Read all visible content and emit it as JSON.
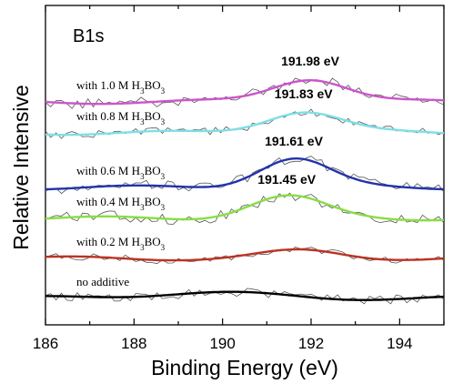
{
  "chart_data": {
    "type": "line",
    "panel_label": "B1s",
    "xlabel": "Binding Energy (eV)",
    "ylabel": "Relative Intensive",
    "xlim": [
      186,
      195
    ],
    "x_ticks": [
      "186",
      "188",
      "190",
      "192",
      "194"
    ],
    "y_ticks_shown": false,
    "grid": false,
    "series": [
      {
        "label": "with 1.0 M H3BO3",
        "label_parts": {
          "pre": "with 1.0 M H",
          "sub1": "3",
          "mid": "BO",
          "sub2": "3"
        },
        "color": "#cc55cc",
        "baseline": 112,
        "peak": {
          "center": 191.98,
          "height": 26,
          "width": 0.85,
          "label": "191.98 eV"
        },
        "noise_seed": 7,
        "noise_amp": 6
      },
      {
        "label": "with 0.8 M H3BO3",
        "label_parts": {
          "pre": "with 0.8 M H",
          "sub1": "3",
          "mid": "BO",
          "sub2": "3"
        },
        "color": "#7fdfe6",
        "baseline": 146,
        "peak": {
          "center": 191.83,
          "height": 24,
          "width": 0.85,
          "label": "191.83 eV"
        },
        "noise_seed": 13,
        "noise_amp": 4
      },
      {
        "label": "with 0.6 M H3BO3",
        "label_parts": {
          "pre": "with 0.6 M H",
          "sub1": "3",
          "mid": "BO",
          "sub2": "3"
        },
        "color": "#2233aa",
        "baseline": 206,
        "peak": {
          "center": 191.61,
          "height": 32,
          "width": 0.8,
          "label": "191.61 eV"
        },
        "noise_seed": 21,
        "noise_amp": 6
      },
      {
        "label": "with 0.4 M H3BO3",
        "label_parts": {
          "pre": "with 0.4 M H",
          "sub1": "3",
          "mid": "BO",
          "sub2": "3"
        },
        "color": "#88dd44",
        "baseline": 240,
        "peak": {
          "center": 191.45,
          "height": 24,
          "width": 0.85,
          "label": "191.45 eV"
        },
        "noise_seed": 33,
        "noise_amp": 6
      },
      {
        "label": "with 0.2 M H3BO3",
        "label_parts": {
          "pre": "with 0.2 M H",
          "sub1": "3",
          "mid": "BO",
          "sub2": "3"
        },
        "color": "#bb3322",
        "baseline": 284,
        "peak": {
          "center": 191.8,
          "height": 8,
          "width": 0.9,
          "label": ""
        },
        "noise_seed": 45,
        "noise_amp": 4
      },
      {
        "label": "no additive",
        "label_parts": {
          "pre": "no additive",
          "sub1": "",
          "mid": "",
          "sub2": ""
        },
        "color": "#000000",
        "baseline": 328,
        "peak": {
          "center": 189.5,
          "height": 6,
          "width": 1.6,
          "label": ""
        },
        "noise_seed": 57,
        "noise_amp": 5
      }
    ]
  }
}
